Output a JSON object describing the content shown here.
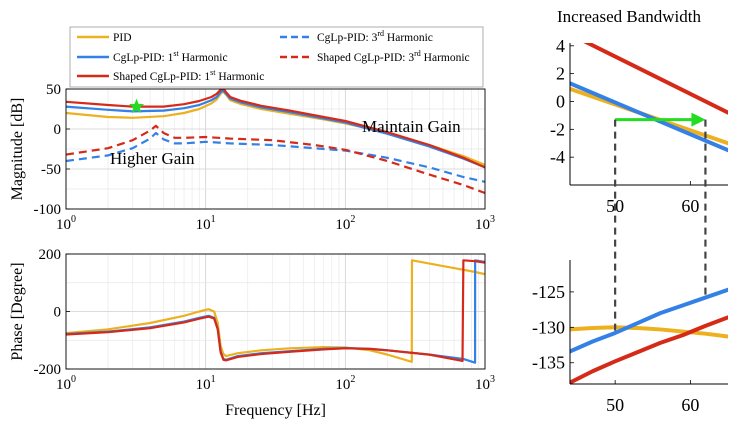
{
  "colors": {
    "pid": "#EDB120",
    "cglp_1st": "#3381E6",
    "shaped_1st": "#D62A18",
    "green": "#22DD22",
    "grid": "#dddddd",
    "dashed_gray": "#444444"
  },
  "legend": {
    "pid": "PID",
    "cglp_1st_prefix": "CgLp-PID: 1",
    "cglp_1st_sup": "st",
    "cglp_1st_suffix": " Harmonic",
    "shaped_1st_prefix": "Shaped CgLp-PID: 1",
    "shaped_1st_sup": "st",
    "shaped_1st_suffix": " Harmonic",
    "cglp_3rd_prefix": "CgLp-PID: 3",
    "cglp_3rd_sup": "rd",
    "cglp_3rd_suffix": " Harmonic",
    "shaped_3rd_prefix": "Shaped CgLp-PID: 3",
    "shaped_3rd_sup": "rd",
    "shaped_3rd_suffix": " Harmonic"
  },
  "annotations": {
    "higher_gain": "Higher Gain",
    "maintain_gain": "Maintain Gain",
    "increased_bandwidth": "Increased Bandwidth"
  },
  "chart_data": [
    {
      "type": "line",
      "name": "magnitude",
      "xscale": "log",
      "xlim": [
        1,
        1000
      ],
      "ylim": [
        -100,
        50
      ],
      "ylabel": "Magnitude [dB]",
      "xlabel": "",
      "yticks": [
        "50",
        "0",
        "-50",
        "-100"
      ],
      "xticks": [
        {
          "base": "10",
          "exp": "0"
        },
        {
          "base": "10",
          "exp": "1"
        },
        {
          "base": "10",
          "exp": "2"
        },
        {
          "base": "10",
          "exp": "3"
        }
      ],
      "series": [
        {
          "name": "PID",
          "style": "solid",
          "color": "#EDB120",
          "x": [
            1,
            2,
            3,
            5,
            7,
            9,
            11,
            12,
            12.8,
            13.3,
            14,
            15,
            18,
            25,
            40,
            70,
            100,
            200,
            400,
            700,
            1000
          ],
          "y": [
            20,
            15,
            14,
            16,
            20,
            25,
            32,
            37,
            44,
            47,
            43,
            36,
            31,
            25,
            19,
            12,
            7,
            -5,
            -20,
            -34,
            -45
          ]
        },
        {
          "name": "CgLp-PID: 1st Harmonic",
          "style": "solid",
          "color": "#3381E6",
          "x": [
            1,
            2,
            3,
            5,
            7,
            9,
            11,
            12,
            12.8,
            13.3,
            14,
            15,
            18,
            25,
            40,
            70,
            100,
            200,
            400,
            700,
            1000
          ],
          "y": [
            28,
            24,
            22,
            23,
            26,
            30,
            36,
            40,
            46,
            48,
            44,
            38,
            33,
            27,
            21,
            13,
            8,
            -6,
            -22,
            -37,
            -48
          ]
        },
        {
          "name": "Shaped CgLp-PID: 1st Harmonic",
          "style": "solid",
          "color": "#D62A18",
          "x": [
            1,
            2,
            3,
            5,
            7,
            9,
            11,
            12,
            12.8,
            13.3,
            14,
            15,
            18,
            25,
            40,
            70,
            100,
            200,
            400,
            700,
            1000
          ],
          "y": [
            34,
            30,
            28,
            28,
            31,
            35,
            40,
            44,
            49,
            51,
            46,
            40,
            35,
            29,
            23,
            15,
            10,
            -4,
            -20,
            -36,
            -48
          ]
        },
        {
          "name": "CgLp-PID: 3rd Harmonic",
          "style": "dashed",
          "color": "#3381E6",
          "x": [
            1,
            2,
            3,
            4,
            4.4,
            5,
            6,
            7,
            10,
            15,
            30,
            60,
            100,
            200,
            400,
            700,
            1000
          ],
          "y": [
            -40,
            -33,
            -24,
            -12,
            -5,
            -13,
            -18,
            -18,
            -16,
            -18,
            -20,
            -24,
            -27,
            -36,
            -48,
            -60,
            -66
          ]
        },
        {
          "name": "Shaped CgLp-PID: 3rd Harmonic",
          "style": "dashed",
          "color": "#D62A18",
          "x": [
            1,
            2,
            3,
            4,
            4.4,
            5,
            6,
            7,
            10,
            15,
            30,
            60,
            100,
            200,
            400,
            700,
            1000
          ],
          "y": [
            -32,
            -24,
            -14,
            -2,
            4,
            -5,
            -11,
            -11,
            -10,
            -12,
            -14,
            -20,
            -26,
            -40,
            -57,
            -70,
            -80
          ]
        }
      ],
      "marker": {
        "shape": "star",
        "x": 3.2,
        "y": 28,
        "color": "#22DD22"
      }
    },
    {
      "type": "line",
      "name": "phase",
      "xscale": "log",
      "xlim": [
        1,
        1000
      ],
      "ylim": [
        -200,
        200
      ],
      "ylabel": "Phase [Degree]",
      "xlabel": "Frequency [Hz]",
      "yticks": [
        "200",
        "0",
        "-200"
      ],
      "xticks": [
        {
          "base": "10",
          "exp": "0"
        },
        {
          "base": "10",
          "exp": "1"
        },
        {
          "base": "10",
          "exp": "2"
        },
        {
          "base": "10",
          "exp": "3"
        }
      ],
      "series": [
        {
          "name": "PID",
          "color": "#EDB120",
          "x": [
            1,
            2,
            4,
            7,
            9,
            10.5,
            11.5,
            12.2,
            12.8,
            13.4,
            14,
            17,
            25,
            40,
            70,
            100,
            150,
            200,
            299,
            300,
            500,
            800,
            1000
          ],
          "y": [
            -75,
            -62,
            -40,
            -15,
            0,
            8,
            0,
            -40,
            -120,
            -148,
            -155,
            -145,
            -135,
            -128,
            -124,
            -125,
            -135,
            -150,
            -175,
            178,
            158,
            140,
            130
          ]
        },
        {
          "name": "CgLp-PID: 1st Harmonic",
          "color": "#3381E6",
          "x": [
            1,
            2,
            4,
            7,
            9,
            10.5,
            11.5,
            12.2,
            12.8,
            13.4,
            14,
            17,
            25,
            40,
            70,
            100,
            150,
            200,
            400,
            700,
            849,
            850,
            1000
          ],
          "y": [
            -78,
            -70,
            -55,
            -35,
            -22,
            -15,
            -22,
            -60,
            -140,
            -165,
            -168,
            -155,
            -145,
            -138,
            -130,
            -127,
            -130,
            -135,
            -150,
            -165,
            -178,
            178,
            172
          ]
        },
        {
          "name": "Shaped CgLp-PID: 1st Harmonic",
          "color": "#D62A18",
          "x": [
            1,
            2,
            4,
            7,
            9,
            10.5,
            11.5,
            12.2,
            12.8,
            13.4,
            14,
            17,
            25,
            40,
            70,
            100,
            150,
            200,
            400,
            690,
            700,
            850,
            1000
          ],
          "y": [
            -80,
            -72,
            -58,
            -38,
            -25,
            -18,
            -24,
            -62,
            -142,
            -168,
            -170,
            -158,
            -148,
            -140,
            -132,
            -128,
            -130,
            -135,
            -150,
            -172,
            178,
            175,
            170
          ]
        }
      ]
    },
    {
      "type": "line",
      "name": "zoom-magnitude",
      "xscale": "linear",
      "xlim": [
        44,
        65
      ],
      "ylim": [
        -6,
        4.2
      ],
      "yticks": [
        "4",
        "2",
        "0",
        "-2",
        "-4"
      ],
      "xticks": [
        "50",
        "60"
      ],
      "series": [
        {
          "name": "PID",
          "color": "#EDB120",
          "x": [
            44,
            65
          ],
          "y": [
            0.9,
            -3.0
          ]
        },
        {
          "name": "CgLp-PID: 1st Harmonic",
          "color": "#3381E6",
          "x": [
            44,
            65
          ],
          "y": [
            1.3,
            -3.5
          ]
        },
        {
          "name": "Shaped CgLp-PID: 1st Harmonic",
          "color": "#D62A18",
          "x": [
            46,
            65
          ],
          "y": [
            4.3,
            -0.8
          ]
        }
      ],
      "arrow": {
        "from": [
          50,
          -1.3
        ],
        "to": [
          62,
          -1.3
        ],
        "color": "#22DD22"
      },
      "reference_x": [
        50,
        62
      ]
    },
    {
      "type": "line",
      "name": "zoom-phase",
      "xscale": "linear",
      "xlim": [
        44,
        65
      ],
      "ylim": [
        -138,
        -120.5
      ],
      "yticks": [
        "-125",
        "-130",
        "-135"
      ],
      "xticks": [
        "50",
        "60"
      ],
      "series": [
        {
          "name": "PID",
          "color": "#EDB120",
          "x": [
            44,
            47,
            50,
            53,
            56,
            59,
            62,
            65
          ],
          "y": [
            -130.3,
            -130.1,
            -130.0,
            -130.1,
            -130.3,
            -130.6,
            -130.9,
            -131.3
          ]
        },
        {
          "name": "CgLp-PID: 1st Harmonic",
          "color": "#3381E6",
          "x": [
            44,
            47,
            50,
            53,
            56,
            59,
            62,
            65
          ],
          "y": [
            -133.4,
            -132.0,
            -130.8,
            -129.4,
            -128.0,
            -126.9,
            -125.8,
            -124.7
          ]
        },
        {
          "name": "Shaped CgLp-PID: 1st Harmonic",
          "color": "#D62A18",
          "x": [
            44,
            47,
            50,
            53,
            56,
            59,
            62,
            65
          ],
          "y": [
            -137.8,
            -136.2,
            -134.8,
            -133.5,
            -132.2,
            -131.1,
            -129.8,
            -128.6
          ]
        }
      ],
      "reference_x": [
        50,
        62
      ]
    }
  ]
}
